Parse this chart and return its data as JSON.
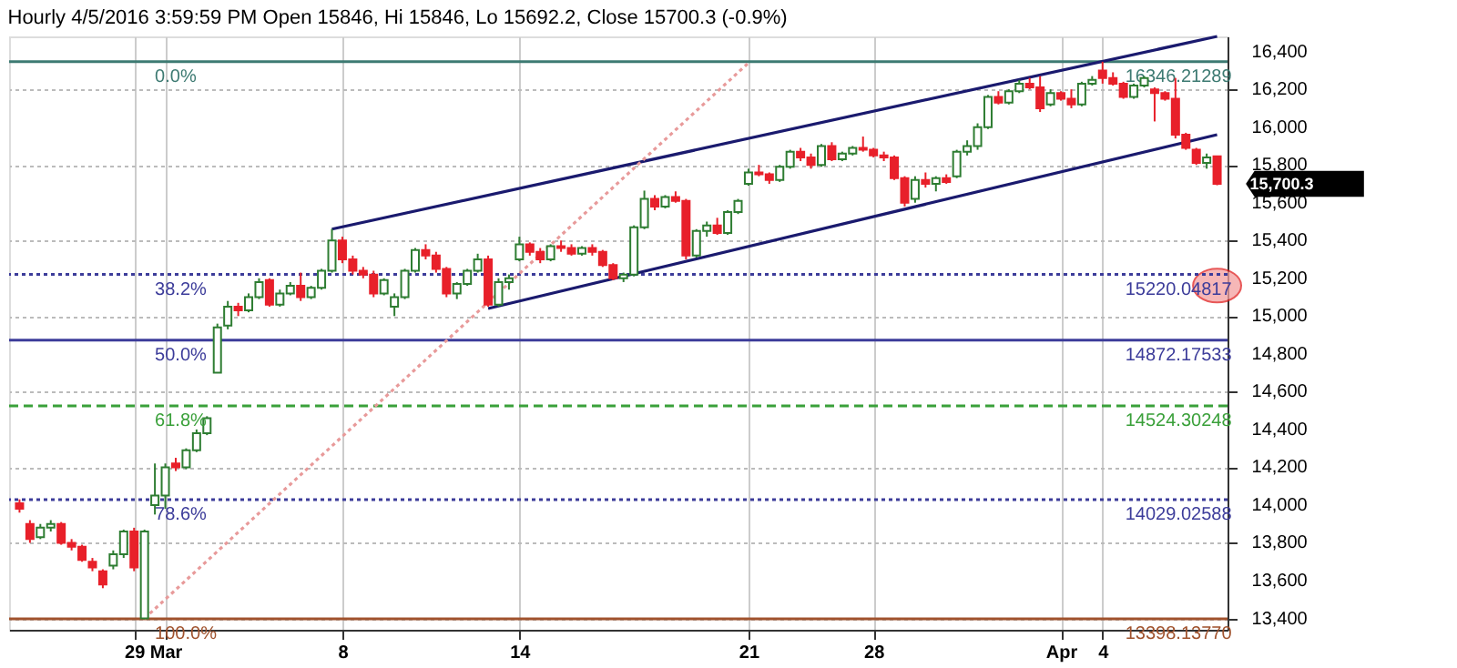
{
  "chart_data": {
    "type": "candlestick",
    "title": "Hourly 4/5/2016 3:59:59 PM Open 15846, Hi 15846, Lo 15692.2, Close 15700.3 (-0.9%)",
    "categories": [
      null,
      null,
      null,
      null,
      null,
      null,
      null,
      null,
      null,
      null,
      null,
      "29",
      null,
      null,
      "Mar",
      null,
      null,
      null,
      null,
      null,
      null,
      null,
      null,
      null,
      null,
      null,
      null,
      null,
      null,
      null,
      null,
      "8",
      null,
      null,
      null,
      null,
      null,
      null,
      null,
      null,
      null,
      null,
      null,
      null,
      null,
      null,
      null,
      null,
      "14",
      null,
      null,
      null,
      null,
      null,
      null,
      null,
      null,
      null,
      null,
      null,
      null,
      null,
      null,
      null,
      null,
      null,
      null,
      null,
      null,
      null,
      "21",
      null,
      null,
      null,
      null,
      null,
      null,
      null,
      null,
      null,
      null,
      null,
      "28",
      null,
      null,
      null,
      null,
      null,
      null,
      null,
      null,
      null,
      null,
      null,
      null,
      null,
      null,
      null,
      null,
      null,
      "Apr",
      null,
      null,
      null,
      "4",
      null,
      null,
      null,
      null,
      null,
      null,
      null,
      null,
      null,
      null,
      null
    ],
    "ohlc": [
      [
        14010,
        14030,
        13960,
        13980
      ],
      [
        13900,
        13920,
        13800,
        13820
      ],
      [
        13830,
        13900,
        13820,
        13880
      ],
      [
        13880,
        13920,
        13860,
        13900
      ],
      [
        13900,
        13910,
        13790,
        13800
      ],
      [
        13800,
        13820,
        13760,
        13780
      ],
      [
        13780,
        13790,
        13700,
        13710
      ],
      [
        13700,
        13720,
        13650,
        13670
      ],
      [
        13650,
        13660,
        13560,
        13580
      ],
      [
        13680,
        13760,
        13660,
        13740
      ],
      [
        13740,
        13870,
        13720,
        13860
      ],
      [
        13860,
        13880,
        13650,
        13670
      ],
      [
        13400,
        13870,
        13398,
        13860
      ],
      [
        14000,
        14220,
        13950,
        14050
      ],
      [
        14050,
        14220,
        13980,
        14200
      ],
      [
        14220,
        14250,
        14180,
        14200
      ],
      [
        14200,
        14300,
        14190,
        14290
      ],
      [
        14290,
        14400,
        14280,
        14380
      ],
      [
        14380,
        14470,
        14370,
        14460
      ],
      [
        14700,
        14960,
        14700,
        14940
      ],
      [
        14950,
        15080,
        14930,
        15050
      ],
      [
        15050,
        15070,
        15000,
        15030
      ],
      [
        15030,
        15120,
        15020,
        15100
      ],
      [
        15100,
        15200,
        15090,
        15180
      ],
      [
        15190,
        15200,
        15050,
        15060
      ],
      [
        15060,
        15140,
        15050,
        15120
      ],
      [
        15120,
        15180,
        15110,
        15160
      ],
      [
        15160,
        15230,
        15080,
        15100
      ],
      [
        15100,
        15160,
        15090,
        15150
      ],
      [
        15150,
        15250,
        15140,
        15240
      ],
      [
        15240,
        15461,
        15230,
        15400
      ],
      [
        15400,
        15420,
        15280,
        15300
      ],
      [
        15300,
        15320,
        15220,
        15240
      ],
      [
        15240,
        15260,
        15200,
        15220
      ],
      [
        15220,
        15240,
        15100,
        15120
      ],
      [
        15120,
        15200,
        15110,
        15190
      ],
      [
        15050,
        15120,
        15000,
        15100
      ],
      [
        15100,
        15250,
        15090,
        15240
      ],
      [
        15240,
        15360,
        15230,
        15350
      ],
      [
        15350,
        15380,
        15300,
        15320
      ],
      [
        15320,
        15340,
        15230,
        15250
      ],
      [
        15250,
        15260,
        15100,
        15120
      ],
      [
        15120,
        15180,
        15090,
        15170
      ],
      [
        15170,
        15250,
        15160,
        15240
      ],
      [
        15240,
        15330,
        15230,
        15300
      ],
      [
        15300,
        15320,
        15050,
        15060
      ],
      [
        15060,
        15200,
        15050,
        15180
      ],
      [
        15180,
        15220,
        15140,
        15200
      ],
      [
        15300,
        15420,
        15290,
        15380
      ],
      [
        15380,
        15390,
        15320,
        15340
      ],
      [
        15340,
        15360,
        15280,
        15300
      ],
      [
        15300,
        15380,
        15290,
        15370
      ],
      [
        15370,
        15400,
        15340,
        15360
      ],
      [
        15360,
        15380,
        15320,
        15330
      ],
      [
        15330,
        15370,
        15320,
        15360
      ],
      [
        15360,
        15380,
        15320,
        15340
      ],
      [
        15340,
        15350,
        15260,
        15270
      ],
      [
        15270,
        15280,
        15190,
        15200
      ],
      [
        15200,
        15230,
        15180,
        15220
      ],
      [
        15220,
        15480,
        15210,
        15470
      ],
      [
        15470,
        15664,
        15460,
        15620
      ],
      [
        15620,
        15640,
        15560,
        15580
      ],
      [
        15580,
        15640,
        15570,
        15630
      ],
      [
        15630,
        15660,
        15600,
        15610
      ],
      [
        15610,
        15620,
        15300,
        15320
      ],
      [
        15320,
        15460,
        15310,
        15450
      ],
      [
        15450,
        15500,
        15420,
        15480
      ],
      [
        15480,
        15520,
        15430,
        15440
      ],
      [
        15440,
        15560,
        15430,
        15550
      ],
      [
        15550,
        15620,
        15540,
        15610
      ],
      [
        15700,
        15780,
        15690,
        15760
      ],
      [
        15760,
        15800,
        15740,
        15750
      ],
      [
        15750,
        15760,
        15700,
        15720
      ],
      [
        15720,
        15800,
        15710,
        15790
      ],
      [
        15790,
        15880,
        15780,
        15870
      ],
      [
        15870,
        15890,
        15820,
        15840
      ],
      [
        15840,
        15860,
        15780,
        15800
      ],
      [
        15800,
        15910,
        15790,
        15900
      ],
      [
        15900,
        15920,
        15820,
        15830
      ],
      [
        15830,
        15870,
        15820,
        15860
      ],
      [
        15860,
        15900,
        15850,
        15890
      ],
      [
        15890,
        15950,
        15870,
        15880
      ],
      [
        15880,
        15890,
        15840,
        15850
      ],
      [
        15850,
        15870,
        15820,
        15840
      ],
      [
        15840,
        15850,
        15720,
        15730
      ],
      [
        15730,
        15740,
        15580,
        15600
      ],
      [
        15620,
        15740,
        15600,
        15720
      ],
      [
        15720,
        15760,
        15680,
        15700
      ],
      [
        15700,
        15740,
        15660,
        15730
      ],
      [
        15730,
        15750,
        15700,
        15710
      ],
      [
        15740,
        15880,
        15730,
        15870
      ],
      [
        15870,
        15930,
        15850,
        15900
      ],
      [
        15900,
        16020,
        15880,
        16000
      ],
      [
        16000,
        16170,
        15990,
        16160
      ],
      [
        16160,
        16190,
        16120,
        16130
      ],
      [
        16130,
        16200,
        16120,
        16190
      ],
      [
        16190,
        16250,
        16180,
        16230
      ],
      [
        16230,
        16260,
        16200,
        16210
      ],
      [
        16210,
        16270,
        16080,
        16100
      ],
      [
        16120,
        16200,
        16110,
        16180
      ],
      [
        16180,
        16190,
        16140,
        16150
      ],
      [
        16150,
        16200,
        16100,
        16120
      ],
      [
        16120,
        16240,
        16110,
        16230
      ],
      [
        16230,
        16270,
        16220,
        16250
      ],
      [
        16300,
        16346,
        16230,
        16260
      ],
      [
        16260,
        16290,
        16220,
        16230
      ],
      [
        16230,
        16240,
        16150,
        16160
      ],
      [
        16160,
        16230,
        16150,
        16220
      ],
      [
        16220,
        16270,
        16210,
        16260
      ],
      [
        16200,
        16210,
        16030,
        16180
      ],
      [
        16180,
        16190,
        16140,
        16150
      ],
      [
        16150,
        16260,
        15940,
        15960
      ],
      [
        15960,
        15970,
        15880,
        15890
      ],
      [
        15880,
        15890,
        15800,
        15810
      ],
      [
        15810,
        15860,
        15780,
        15840
      ],
      [
        15846,
        15846,
        15692.2,
        15700.3
      ]
    ],
    "series": [
      {
        "type": "line",
        "values": [
          null,
          null,
          null,
          null,
          null,
          null,
          null,
          null,
          null,
          null,
          null,
          null,
          null,
          null,
          null,
          null,
          null,
          null,
          null,
          null,
          null,
          null,
          null,
          null,
          null,
          null,
          null,
          null,
          null,
          null,
          15460,
          null,
          null,
          null,
          null,
          null,
          null,
          null,
          null,
          null,
          null,
          null,
          null,
          null,
          null,
          null,
          null,
          null,
          null,
          null,
          null,
          null,
          null,
          null,
          null,
          null,
          null,
          null,
          null,
          null,
          null,
          null,
          null,
          null,
          null,
          null,
          null,
          null,
          null,
          null,
          null,
          null,
          null,
          null,
          null,
          null,
          null,
          null,
          null,
          null,
          null,
          null,
          null,
          null,
          null,
          null,
          null,
          null,
          null,
          null,
          null,
          null,
          null,
          null,
          null,
          null,
          null,
          null,
          null,
          null,
          null,
          null,
          null,
          null,
          null,
          null,
          null,
          null,
          null,
          null,
          null,
          null,
          null,
          null,
          null,
          16480
        ],
        "color": "#1a1a6e",
        "line_style": "solid"
      },
      {
        "type": "line",
        "values": [
          null,
          null,
          null,
          null,
          null,
          null,
          null,
          null,
          null,
          null,
          null,
          null,
          null,
          null,
          null,
          null,
          null,
          null,
          null,
          null,
          null,
          null,
          null,
          null,
          null,
          null,
          null,
          null,
          null,
          null,
          null,
          null,
          null,
          null,
          null,
          null,
          null,
          null,
          null,
          null,
          null,
          null,
          null,
          null,
          null,
          15040,
          null,
          null,
          null,
          null,
          null,
          null,
          null,
          null,
          null,
          null,
          null,
          null,
          null,
          null,
          null,
          null,
          null,
          null,
          null,
          null,
          null,
          null,
          null,
          null,
          null,
          null,
          null,
          null,
          null,
          null,
          null,
          null,
          null,
          null,
          null,
          null,
          null,
          null,
          null,
          null,
          null,
          null,
          null,
          null,
          null,
          null,
          null,
          null,
          null,
          null,
          null,
          null,
          null,
          null,
          null,
          null,
          null,
          null,
          null,
          null,
          null,
          null,
          null,
          null,
          null,
          null,
          null,
          null,
          null,
          15960
        ],
        "color": "#1a1a6e",
        "line_style": "solid"
      },
      {
        "type": "line",
        "values": [
          null,
          null,
          null,
          null,
          null,
          null,
          null,
          null,
          null,
          null,
          null,
          null,
          13400,
          null,
          null,
          null,
          null,
          null,
          null,
          null,
          null,
          null,
          null,
          null,
          null,
          null,
          null,
          null,
          null,
          null,
          null,
          null,
          null,
          null,
          null,
          null,
          null,
          null,
          null,
          null,
          null,
          null,
          null,
          null,
          null,
          null,
          null,
          null,
          null,
          null,
          null,
          null,
          null,
          null,
          null,
          null,
          null,
          null,
          null,
          null,
          null,
          null,
          null,
          null,
          null,
          null,
          null,
          null,
          null,
          null,
          16340,
          null,
          null,
          null,
          null,
          null,
          null,
          null,
          null,
          null,
          null,
          null,
          null,
          null,
          null,
          null,
          null,
          null,
          null,
          null,
          null,
          null,
          null,
          null,
          null,
          null,
          null,
          null,
          null,
          null,
          null,
          null,
          null,
          null,
          null,
          null,
          null,
          null,
          null,
          null,
          null,
          null,
          null,
          null,
          null,
          null
        ],
        "color": "#e89a9a",
        "line_style": "dotted"
      }
    ],
    "ref_lines": [
      {
        "axis": "y",
        "value": 16346.21289,
        "label": "16346.21289",
        "color": "#3d7a72",
        "line_style": "solid"
      },
      {
        "axis": "y",
        "value": 15220.04817,
        "label": "15220.04817",
        "color": "#3c3c9a",
        "line_style": "dotted"
      },
      {
        "axis": "y",
        "value": 14872.17533,
        "label": "14872.17533",
        "color": "#3c3c9a",
        "line_style": "solid"
      },
      {
        "axis": "y",
        "value": 14524.30248,
        "label": "14524.30248",
        "color": "#3aa03a",
        "line_style": "dashed"
      },
      {
        "axis": "y",
        "value": 14029.02588,
        "label": "14029.02588",
        "color": "#3c3c9a",
        "line_style": "dotted"
      },
      {
        "axis": "y",
        "value": 13398.1377,
        "label": "13398.13770",
        "color": "#a0522d",
        "line_style": "solid"
      }
    ],
    "annotations": [
      {
        "text": "0.0%",
        "y": 16346.21289
      },
      {
        "text": "38.2%",
        "y": 15220.04817
      },
      {
        "text": "50.0%",
        "y": 14872.17533
      },
      {
        "text": "61.8%",
        "y": 14524.30248
      },
      {
        "text": "78.6%",
        "y": 14029.02588
      },
      {
        "text": "100.0%",
        "y": 13398.1377
      },
      "15,700.3"
    ],
    "ylim": [
      13340,
      16480
    ],
    "yticks": [
      {
        "value": 13400,
        "label": "13,400"
      },
      {
        "value": 13600,
        "label": "13,600"
      },
      {
        "value": 13800,
        "label": "13,800"
      },
      {
        "value": 14000,
        "label": "14,000"
      },
      {
        "value": 14200,
        "label": "14,200"
      },
      {
        "value": 14400,
        "label": "14,400"
      },
      {
        "value": 14600,
        "label": "14,600"
      },
      {
        "value": 14800,
        "label": "14,800"
      },
      {
        "value": 15000,
        "label": "15,000"
      },
      {
        "value": 15200,
        "label": "15,200"
      },
      {
        "value": 15400,
        "label": "15,400"
      },
      {
        "value": 15600,
        "label": "15,600"
      },
      {
        "value": 15800,
        "label": "15,800"
      },
      {
        "value": 16000,
        "label": "16,000"
      },
      {
        "value": 16200,
        "label": "16,200"
      },
      {
        "value": 16400,
        "label": "16,400"
      }
    ],
    "grid": true
  }
}
